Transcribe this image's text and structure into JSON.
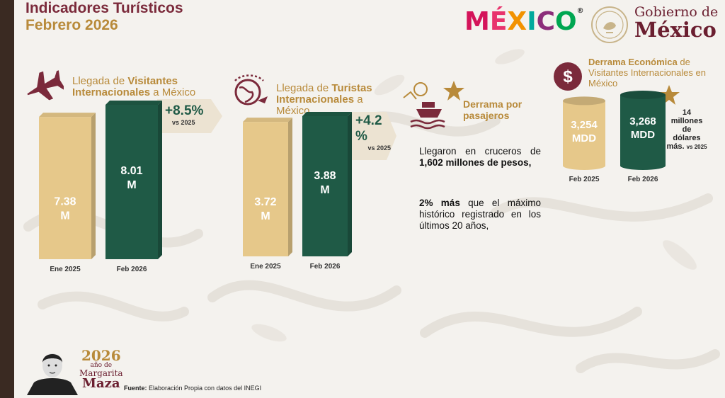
{
  "header": {
    "title": "Indicadores Turísticos",
    "subtitle": "Febrero 2026"
  },
  "logos": {
    "mexico_letters": [
      "M",
      "É",
      "X",
      "I",
      "C",
      "O"
    ],
    "mexico_colors": [
      "#d4145a",
      "#e8336c",
      "#f29200",
      "#00a99d",
      "#8c2d7a",
      "#00a651"
    ],
    "reg": "®",
    "gobierno_l1": "Gobierno de",
    "gobierno_l2": "México"
  },
  "colors": {
    "gold": "#e6c88a",
    "green": "#1f5a46",
    "wine": "#7b2a3b",
    "goldtext": "#b88a3a"
  },
  "panels": {
    "visitantes": {
      "label_pre": "Llegada de ",
      "label_bold": "Visitantes Internacionales",
      "label_post": " a México",
      "pct": "+8.5%",
      "pct_vs": "vs 2025",
      "icon": "airplane-icon"
    },
    "turistas": {
      "label_pre": "Llegada de ",
      "label_bold": "Turistas Internacionales",
      "label_post": " a México",
      "pct": "+4.2 %",
      "pct_vs": "vs 2025",
      "icon": "globe-plane-icon"
    },
    "cruceros": {
      "title": "Derrama por pasajeros",
      "p1_pre": "Llegaron en cruceros de ",
      "p1_bold": "1,602 millones de pesos,",
      "p2_bold": "2% más",
      "p2_post": " que el máximo histórico registrado en los últimos 20 años,",
      "icon": "cruise-ship-icon"
    },
    "derrama": {
      "label_bold": "Derrama Económica",
      "label_post": " de Visitantes Internacionales en México",
      "mills_l1": "14",
      "mills_l2": "millones",
      "mills_l3": "de",
      "mills_l4": "dólares",
      "mills_l5": "más.",
      "mills_vs": "vs 2025",
      "icon": "dollar-icon"
    }
  },
  "chart_data": [
    {
      "type": "bar",
      "categories": [
        "Ene 2025",
        "Feb 2026"
      ],
      "values": [
        7.38,
        8.01
      ],
      "data_labels": [
        "7.38 M",
        "8.01 M"
      ],
      "colors": [
        "#e6c88a",
        "#1f5a46"
      ]
    },
    {
      "type": "bar",
      "categories": [
        "Ene 2025",
        "Feb 2026"
      ],
      "values": [
        3.72,
        3.88
      ],
      "data_labels": [
        "3.72 M",
        "3.88 M"
      ],
      "colors": [
        "#e6c88a",
        "#1f5a46"
      ]
    },
    {
      "type": "bar",
      "categories": [
        "Feb 2025",
        "Feb 2026"
      ],
      "values": [
        3254,
        3268
      ],
      "data_labels": [
        "3,254 MDD",
        "3,268 MDD"
      ],
      "colors": [
        "#e6c88a",
        "#1f5a46"
      ]
    }
  ],
  "footer": {
    "source_label": "Fuente:",
    "source_text": " Elaboración Propia con datos del INEGI",
    "year": "2026",
    "year_sub": "año de",
    "name1": "Margarita",
    "name2": "Maza"
  }
}
